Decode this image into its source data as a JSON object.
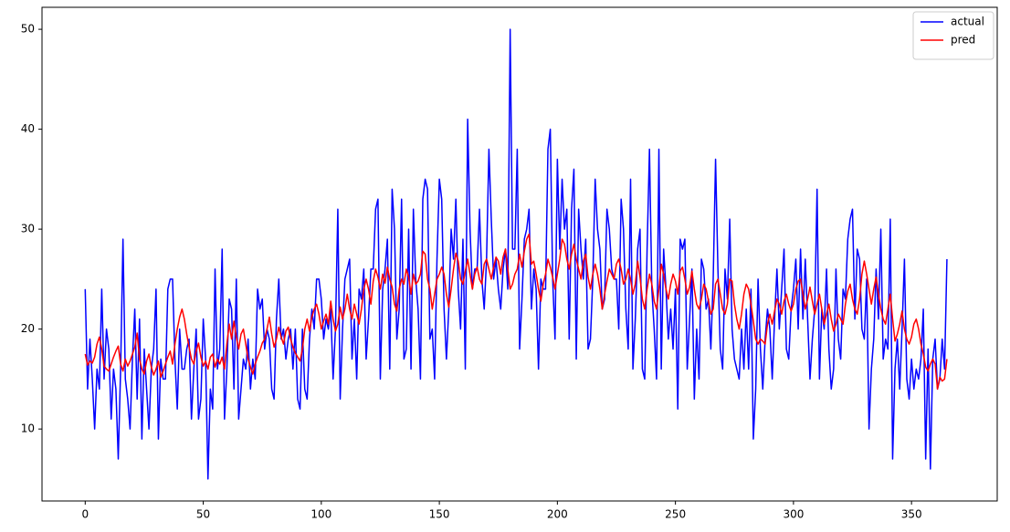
{
  "chart_data": {
    "type": "line",
    "x": [
      0,
      1,
      2,
      3,
      4,
      5,
      6,
      7,
      8,
      9,
      10,
      11,
      12,
      13,
      14,
      15,
      16,
      17,
      18,
      19,
      20,
      21,
      22,
      23,
      24,
      25,
      26,
      27,
      28,
      29,
      30,
      31,
      32,
      33,
      34,
      35,
      36,
      37,
      38,
      39,
      40,
      41,
      42,
      43,
      44,
      45,
      46,
      47,
      48,
      49,
      50,
      51,
      52,
      53,
      54,
      55,
      56,
      57,
      58,
      59,
      60,
      61,
      62,
      63,
      64,
      65,
      66,
      67,
      68,
      69,
      70,
      71,
      72,
      73,
      74,
      75,
      76,
      77,
      78,
      79,
      80,
      81,
      82,
      83,
      84,
      85,
      86,
      87,
      88,
      89,
      90,
      91,
      92,
      93,
      94,
      95,
      96,
      97,
      98,
      99,
      100,
      101,
      102,
      103,
      104,
      105,
      106,
      107,
      108,
      109,
      110,
      111,
      112,
      113,
      114,
      115,
      116,
      117,
      118,
      119,
      120,
      121,
      122,
      123,
      124,
      125,
      126,
      127,
      128,
      129,
      130,
      131,
      132,
      133,
      134,
      135,
      136,
      137,
      138,
      139,
      140,
      141,
      142,
      143,
      144,
      145,
      146,
      147,
      148,
      149,
      150,
      151,
      152,
      153,
      154,
      155,
      156,
      157,
      158,
      159,
      160,
      161,
      162,
      163,
      164,
      165,
      166,
      167,
      168,
      169,
      170,
      171,
      172,
      173,
      174,
      175,
      176,
      177,
      178,
      179,
      180,
      181,
      182,
      183,
      184,
      185,
      186,
      187,
      188,
      189,
      190,
      191,
      192,
      193,
      194,
      195,
      196,
      197,
      198,
      199,
      200,
      201,
      202,
      203,
      204,
      205,
      206,
      207,
      208,
      209,
      210,
      211,
      212,
      213,
      214,
      215,
      216,
      217,
      218,
      219,
      220,
      221,
      222,
      223,
      224,
      225,
      226,
      227,
      228,
      229,
      230,
      231,
      232,
      233,
      234,
      235,
      236,
      237,
      238,
      239,
      240,
      241,
      242,
      243,
      244,
      245,
      246,
      247,
      248,
      249,
      250,
      251,
      252,
      253,
      254,
      255,
      256,
      257,
      258,
      259,
      260,
      261,
      262,
      263,
      264,
      265,
      266,
      267,
      268,
      269,
      270,
      271,
      272,
      273,
      274,
      275,
      276,
      277,
      278,
      279,
      280,
      281,
      282,
      283,
      284,
      285,
      286,
      287,
      288,
      289,
      290,
      291,
      292,
      293,
      294,
      295,
      296,
      297,
      298,
      299,
      300,
      301,
      302,
      303,
      304,
      305,
      306,
      307,
      308,
      309,
      310,
      311,
      312,
      313,
      314,
      315,
      316,
      317,
      318,
      319,
      320,
      321,
      322,
      323,
      324,
      325,
      326,
      327,
      328,
      329,
      330,
      331,
      332,
      333,
      334,
      335,
      336,
      337,
      338,
      339,
      340,
      341,
      342,
      343,
      344,
      345,
      346,
      347,
      348,
      349,
      350,
      351,
      352,
      353,
      354,
      355,
      356,
      357,
      358,
      359,
      360,
      361,
      362,
      363,
      364,
      365
    ],
    "series": [
      {
        "name": "actual",
        "color": "#0000ff",
        "values": [
          24,
          14,
          19,
          15,
          10,
          16,
          14,
          24,
          15,
          20,
          18,
          11,
          16,
          14,
          7,
          16,
          29,
          15,
          13,
          10,
          17,
          22,
          13,
          21,
          9,
          18,
          14,
          10,
          16,
          18,
          24,
          9,
          17,
          15,
          15,
          24,
          25,
          25,
          17,
          12,
          20,
          16,
          16,
          18,
          19,
          11,
          16,
          20,
          11,
          13,
          21,
          17,
          5,
          14,
          12,
          26,
          16,
          18,
          28,
          11,
          16,
          23,
          22,
          14,
          25,
          11,
          14,
          17,
          16,
          19,
          14,
          17,
          15,
          24,
          22,
          23,
          18,
          20,
          19,
          14,
          13,
          21,
          25,
          19,
          20,
          17,
          19,
          20,
          16,
          20,
          13,
          12,
          20,
          14,
          13,
          19,
          22,
          20,
          25,
          25,
          23,
          19,
          21,
          20,
          22,
          15,
          20,
          32,
          13,
          20,
          25,
          26,
          27,
          17,
          21,
          15,
          24,
          23,
          26,
          17,
          21,
          26,
          26,
          32,
          33,
          15,
          24,
          26,
          29,
          16,
          34,
          30,
          19,
          22,
          33,
          17,
          18,
          30,
          16,
          32,
          25,
          22,
          15,
          33,
          35,
          34,
          19,
          20,
          15,
          27,
          35,
          33,
          22,
          17,
          22,
          30,
          27,
          33,
          24,
          20,
          29,
          16,
          41,
          30,
          24,
          26,
          26,
          32,
          25,
          22,
          27,
          38,
          31,
          25,
          27,
          24,
          22,
          26,
          28,
          24,
          50,
          28,
          28,
          38,
          18,
          23,
          29,
          30,
          32,
          22,
          26,
          24,
          16,
          25,
          24,
          24,
          38,
          40,
          25,
          19,
          37,
          28,
          35,
          30,
          32,
          19,
          32,
          36,
          17,
          32,
          28,
          25,
          29,
          18,
          19,
          25,
          35,
          30,
          28,
          22,
          23,
          32,
          30,
          26,
          25,
          25,
          20,
          33,
          30,
          22,
          18,
          35,
          16,
          21,
          28,
          30,
          16,
          15,
          28,
          38,
          24,
          20,
          15,
          38,
          16,
          28,
          24,
          19,
          22,
          18,
          24,
          12,
          29,
          28,
          29,
          16,
          21,
          26,
          13,
          20,
          15,
          27,
          26,
          22,
          23,
          18,
          25,
          37,
          26,
          18,
          16,
          26,
          23,
          31,
          20,
          17,
          16,
          15,
          20,
          16,
          22,
          16,
          24,
          9,
          14,
          25,
          18,
          14,
          19,
          22,
          20,
          15,
          21,
          26,
          20,
          24,
          28,
          18,
          17,
          22,
          24,
          27,
          20,
          28,
          21,
          27,
          21,
          15,
          19,
          22,
          34,
          15,
          22,
          20,
          26,
          18,
          14,
          16,
          26,
          19,
          17,
          24,
          23,
          29,
          31,
          32,
          21,
          28,
          27,
          20,
          19,
          25,
          10,
          16,
          19,
          26,
          21,
          30,
          17,
          19,
          18,
          31,
          7,
          16,
          19,
          14,
          20,
          27,
          15,
          13,
          17,
          14,
          16,
          15,
          17,
          22,
          7,
          18,
          6,
          17,
          19,
          14,
          15,
          19,
          16,
          27
        ]
      },
      {
        "name": "pred",
        "color": "#ff0000",
        "values": [
          17.5,
          16.4,
          16.8,
          16.6,
          17.2,
          18.5,
          19.2,
          18.0,
          16.3,
          16.0,
          15.8,
          16.5,
          17.2,
          17.8,
          18.3,
          16.5,
          15.8,
          17.0,
          16.3,
          16.8,
          17.5,
          18.2,
          19.6,
          17.0,
          16.0,
          15.5,
          16.8,
          17.5,
          16.2,
          15.4,
          16.0,
          16.8,
          15.2,
          15.8,
          16.5,
          17.2,
          17.8,
          16.5,
          18.5,
          20.0,
          21.2,
          22.0,
          21.0,
          19.5,
          18.2,
          17.0,
          16.5,
          17.8,
          18.6,
          17.2,
          16.3,
          16.8,
          16.0,
          17.2,
          17.5,
          16.2,
          17.0,
          16.5,
          17.2,
          16.0,
          18.5,
          20.5,
          19.0,
          20.8,
          19.2,
          18.0,
          19.5,
          20.0,
          18.5,
          17.0,
          16.2,
          15.5,
          16.5,
          17.2,
          17.8,
          18.6,
          19.0,
          20.0,
          21.2,
          19.5,
          18.2,
          19.0,
          20.2,
          19.2,
          18.5,
          19.8,
          20.2,
          19.0,
          18.2,
          17.6,
          17.2,
          16.8,
          18.0,
          20.0,
          21.0,
          19.8,
          21.2,
          22.0,
          22.5,
          21.5,
          20.0,
          20.8,
          21.5,
          20.5,
          22.8,
          21.0,
          19.8,
          20.5,
          22.2,
          21.0,
          22.0,
          23.5,
          22.0,
          21.0,
          22.5,
          21.5,
          20.5,
          22.0,
          24.0,
          25.0,
          24.0,
          22.5,
          24.8,
          26.0,
          25.2,
          24.0,
          25.5,
          24.6,
          26.2,
          25.0,
          24.2,
          22.5,
          21.8,
          24.0,
          25.0,
          24.5,
          26.0,
          25.2,
          23.5,
          25.5,
          24.5,
          24.8,
          25.5,
          27.8,
          27.5,
          25.0,
          24.0,
          22.0,
          23.5,
          25.0,
          25.5,
          26.2,
          25.5,
          23.5,
          22.2,
          24.0,
          26.0,
          27.6,
          26.8,
          25.0,
          24.5,
          25.8,
          27.0,
          25.5,
          24.0,
          25.5,
          26.2,
          25.0,
          24.5,
          26.5,
          27.0,
          26.0,
          25.0,
          26.2,
          27.2,
          26.8,
          25.5,
          27.2,
          28.0,
          26.0,
          24.0,
          24.5,
          25.5,
          26.0,
          27.5,
          26.2,
          27.8,
          29.0,
          29.5,
          26.5,
          26.8,
          25.5,
          24.0,
          22.8,
          24.5,
          25.5,
          27.0,
          26.2,
          25.2,
          24.0,
          25.5,
          27.0,
          29.0,
          28.5,
          27.0,
          26.0,
          27.5,
          28.5,
          27.0,
          26.0,
          25.0,
          26.8,
          27.5,
          25.2,
          24.0,
          25.5,
          26.5,
          25.5,
          24.0,
          22.0,
          23.5,
          24.8,
          26.0,
          25.5,
          25.0,
          26.5,
          27.0,
          26.0,
          24.5,
          25.0,
          26.0,
          25.0,
          23.5,
          24.5,
          26.8,
          25.2,
          23.0,
          22.0,
          24.0,
          25.5,
          24.5,
          22.8,
          22.0,
          24.0,
          26.5,
          25.5,
          24.0,
          23.0,
          24.5,
          25.5,
          24.8,
          23.5,
          25.8,
          26.2,
          25.0,
          23.5,
          24.2,
          25.8,
          24.0,
          22.5,
          22.0,
          23.0,
          24.5,
          24.0,
          22.8,
          21.5,
          22.0,
          24.5,
          25.0,
          23.5,
          22.0,
          21.5,
          22.5,
          25.0,
          24.8,
          22.5,
          21.0,
          20.0,
          21.5,
          23.5,
          24.5,
          24.0,
          22.5,
          20.8,
          19.0,
          18.5,
          19.0,
          18.8,
          18.5,
          20.5,
          21.5,
          20.5,
          21.8,
          23.0,
          22.5,
          21.5,
          22.8,
          23.5,
          22.5,
          21.8,
          22.5,
          24.0,
          24.8,
          25.0,
          23.5,
          22.0,
          23.0,
          24.2,
          22.8,
          21.5,
          22.5,
          23.5,
          22.0,
          20.5,
          21.5,
          22.5,
          21.0,
          19.8,
          20.5,
          21.5,
          21.0,
          20.5,
          22.5,
          23.8,
          24.5,
          23.0,
          22.0,
          21.5,
          23.0,
          25.5,
          26.8,
          25.5,
          24.0,
          22.5,
          24.0,
          25.2,
          23.5,
          22.0,
          21.0,
          20.5,
          22.0,
          23.5,
          21.0,
          18.8,
          19.5,
          20.5,
          21.8,
          20.0,
          19.0,
          18.5,
          19.2,
          20.5,
          21.0,
          20.0,
          18.5,
          17.5,
          16.2,
          15.8,
          16.5,
          17.0,
          16.5,
          14.0,
          15.2,
          14.8,
          15.0,
          17.0
        ]
      }
    ],
    "xlim": [
      -18.3,
      386.3
    ],
    "ylim": [
      2.8,
      52.2
    ],
    "xticks": [
      0,
      50,
      100,
      150,
      200,
      250,
      300,
      350
    ],
    "yticks": [
      10,
      20,
      30,
      40,
      50
    ],
    "grid": false,
    "legend": "upper-right"
  }
}
